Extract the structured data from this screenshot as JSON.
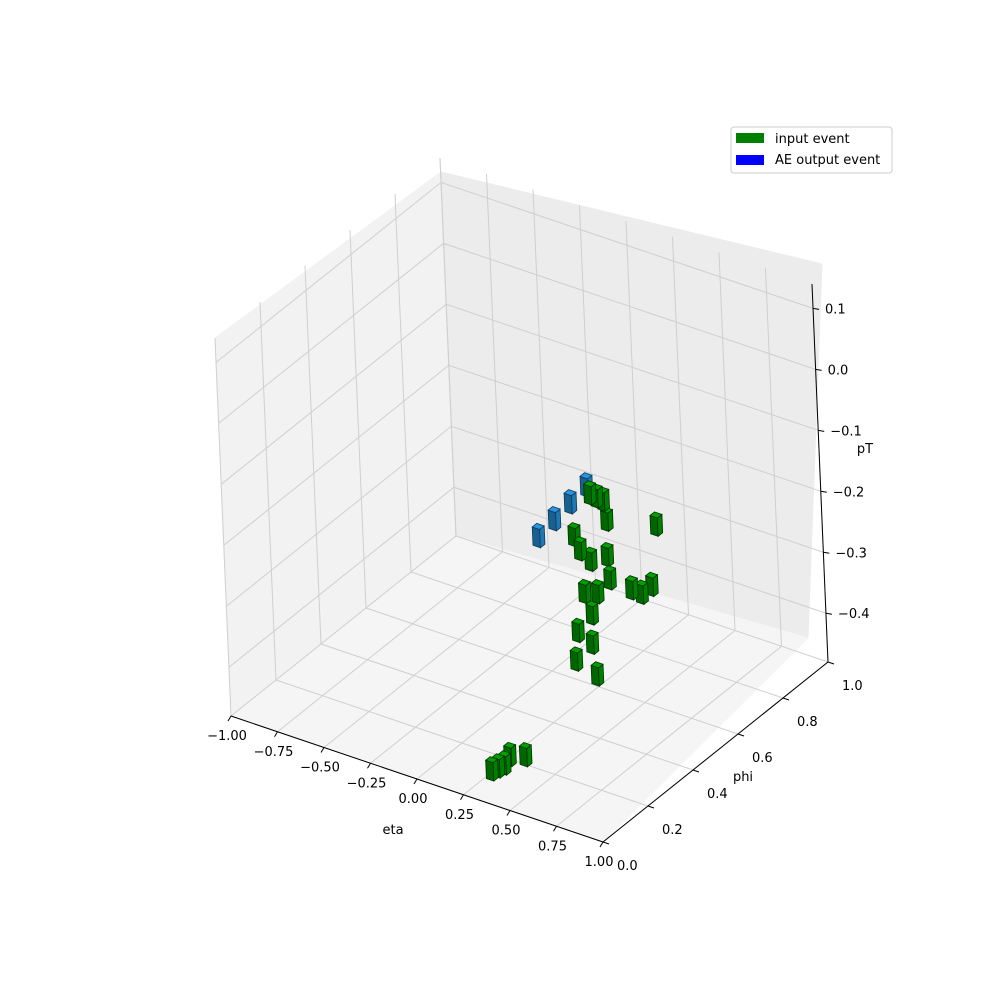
{
  "chart_data": {
    "type": "bar3d",
    "xlabel": "eta",
    "ylabel": "phi",
    "zlabel": "pT",
    "xlim": [
      -1.0,
      1.0
    ],
    "ylim": [
      0.0,
      1.0
    ],
    "zlim": [
      -0.48,
      0.14
    ],
    "x_ticks": [
      "−1.00",
      "−0.75",
      "−0.50",
      "−0.25",
      "0.00",
      "0.25",
      "0.50",
      "0.75",
      "1.00"
    ],
    "y_ticks": [
      "0.0",
      "0.2",
      "0.4",
      "0.6",
      "0.8",
      "1.0"
    ],
    "z_ticks": [
      "0.1",
      "0.0",
      "−0.1",
      "−0.2",
      "−0.3",
      "−0.4"
    ],
    "grid": true,
    "legend_placement": "top-right",
    "series": [
      {
        "name": "input event",
        "color": "#008000",
        "bars": [
          {
            "eta": 0.29,
            "phi": 0.07,
            "pT": -0.47
          },
          {
            "eta": 0.3,
            "phi": 0.09,
            "pT": -0.47
          },
          {
            "eta": 0.31,
            "phi": 0.11,
            "pT": -0.47
          },
          {
            "eta": 0.35,
            "phi": 0.17,
            "pT": -0.47
          },
          {
            "eta": 0.29,
            "phi": 0.15,
            "pT": -0.47
          },
          {
            "eta": 0.19,
            "phi": 0.62,
            "pT": -0.19
          },
          {
            "eta": 0.2,
            "phi": 0.64,
            "pT": -0.2
          },
          {
            "eta": 0.21,
            "phi": 0.66,
            "pT": -0.21
          },
          {
            "eta": 0.2,
            "phi": 0.68,
            "pT": -0.25
          },
          {
            "eta": 0.12,
            "phi": 0.6,
            "pT": -0.26
          },
          {
            "eta": 0.15,
            "phi": 0.6,
            "pT": -0.28
          },
          {
            "eta": 0.18,
            "phi": 0.62,
            "pT": -0.3
          },
          {
            "eta": 0.22,
            "phi": 0.66,
            "pT": -0.3
          },
          {
            "eta": 0.19,
            "phi": 0.58,
            "pT": -0.34
          },
          {
            "eta": 0.21,
            "phi": 0.62,
            "pT": -0.35
          },
          {
            "eta": 0.2,
            "phi": 0.6,
            "pT": -0.38
          },
          {
            "eta": 0.17,
            "phi": 0.56,
            "pT": -0.4
          },
          {
            "eta": 0.22,
            "phi": 0.58,
            "pT": -0.42
          },
          {
            "eta": 0.18,
            "phi": 0.54,
            "pT": -0.44
          },
          {
            "eta": 0.24,
            "phi": 0.58,
            "pT": -0.47
          },
          {
            "eta": 0.38,
            "phi": 0.75,
            "pT": -0.26
          },
          {
            "eta": 0.32,
            "phi": 0.68,
            "pT": -0.35
          },
          {
            "eta": 0.35,
            "phi": 0.7,
            "pT": -0.36
          },
          {
            "eta": 0.38,
            "phi": 0.72,
            "pT": -0.35
          },
          {
            "eta": 0.28,
            "phi": 0.62,
            "pT": -0.32
          }
        ]
      },
      {
        "name": "AE output event",
        "color": "#1f77b4",
        "legend_color": "#0000ff",
        "bars": [
          {
            "eta": -0.1,
            "phi": 0.62,
            "pT": -0.29
          },
          {
            "eta": -0.06,
            "phi": 0.66,
            "pT": -0.27
          },
          {
            "eta": -0.02,
            "phi": 0.7,
            "pT": -0.25
          },
          {
            "eta": 0.02,
            "phi": 0.74,
            "pT": -0.23
          }
        ]
      }
    ]
  }
}
